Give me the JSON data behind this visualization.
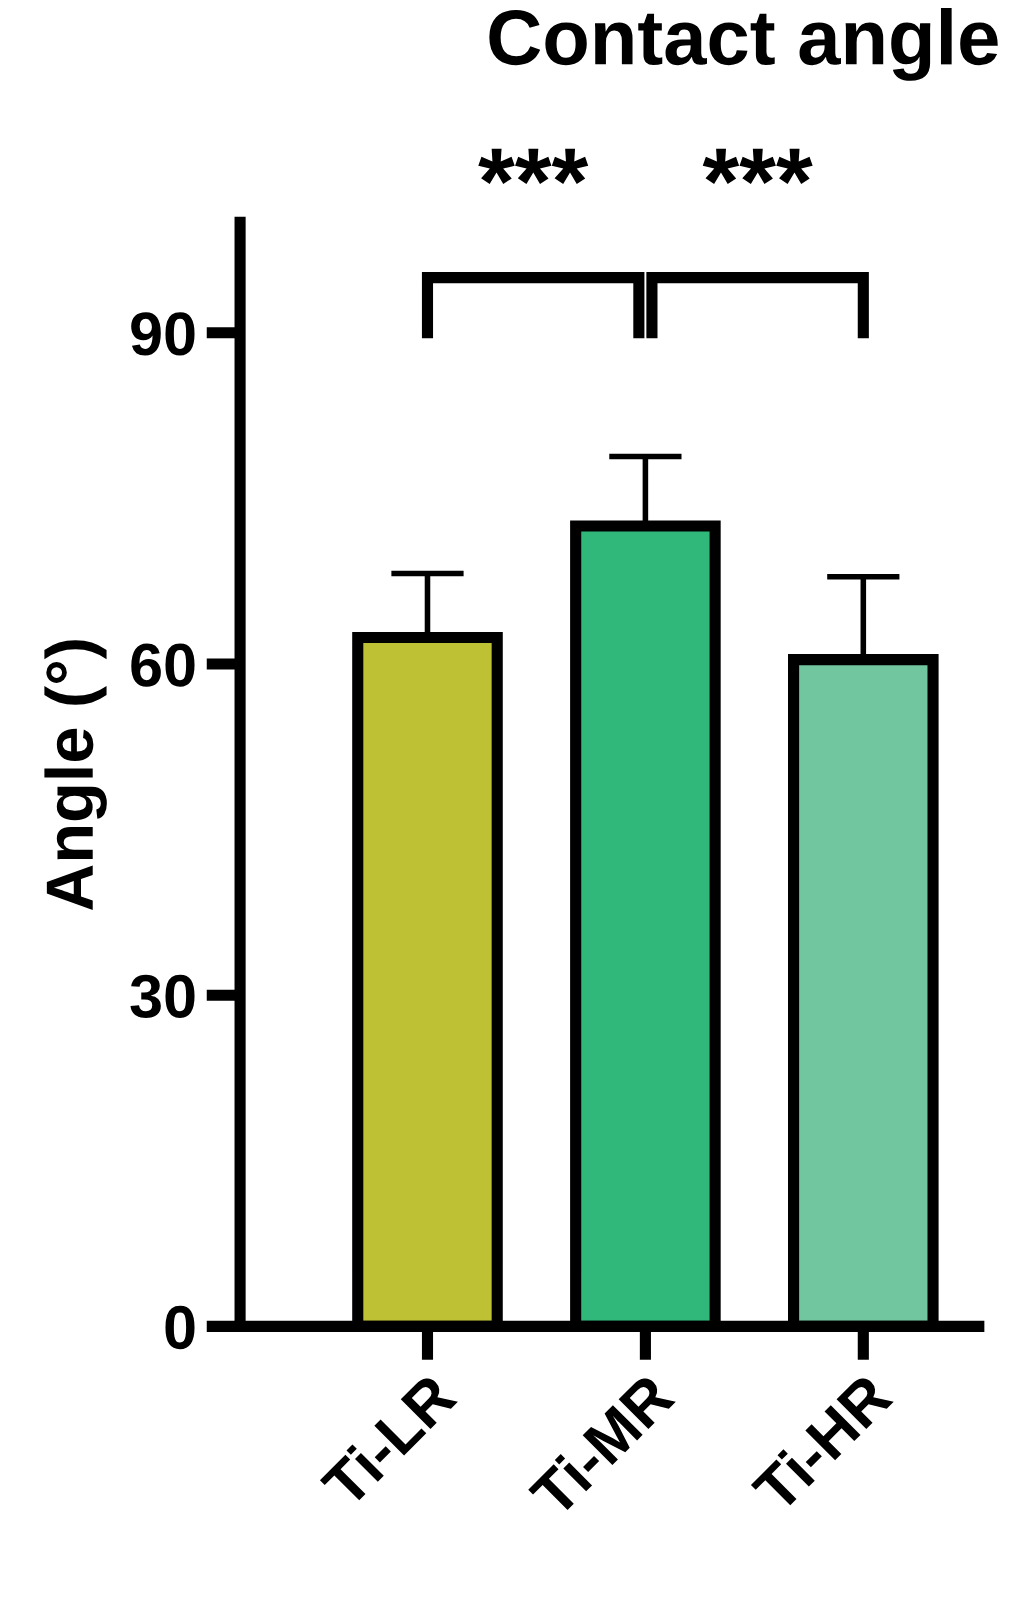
{
  "chart_data": {
    "type": "bar",
    "title": "Contact angle",
    "ylabel": "Angle (°)",
    "categories": [
      "Ti-LR",
      "Ti-MR",
      "Ti-HR"
    ],
    "values": [
      62.4,
      72.5,
      60.4
    ],
    "errors": [
      [
        62.4,
        68.2
      ],
      [
        72.5,
        78.8
      ],
      [
        60.4,
        67.9
      ]
    ],
    "colors": [
      "#bfc134",
      "#2fb87a",
      "#72c69f"
    ],
    "ylim": [
      0,
      100
    ],
    "yticks": [
      0,
      30,
      60,
      90
    ],
    "grid": false,
    "annotations": [
      "***",
      "***"
    ]
  }
}
